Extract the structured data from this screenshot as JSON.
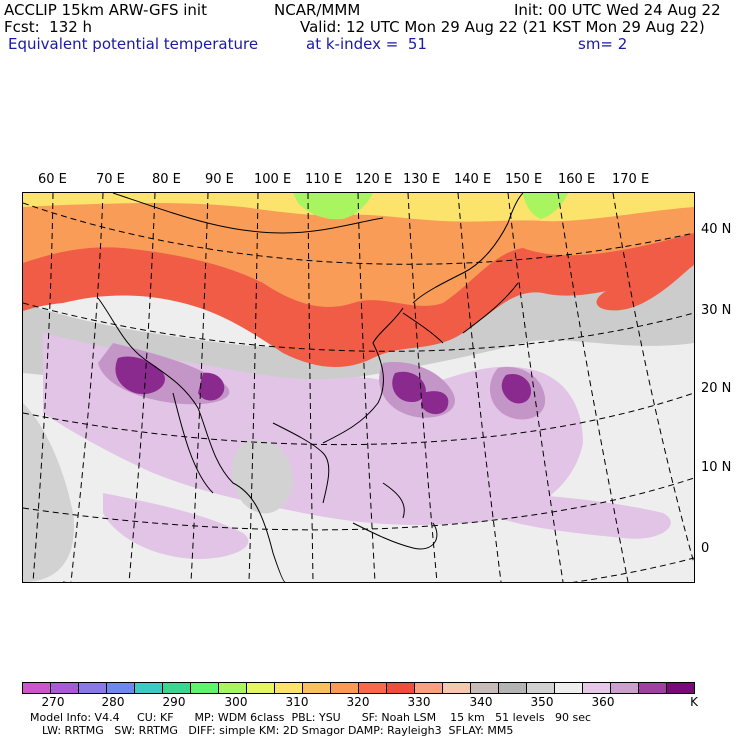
{
  "header": {
    "model": "ACCLIP 15km ARW-GFS init",
    "org": "NCAR/MMM",
    "init": "Init: 00 UTC Wed 24 Aug 22",
    "fcst": "Fcst:  132 h",
    "valid": "Valid: 12 UTC Mon 29 Aug 22 (21 KST Mon 29 Aug 22)",
    "field": "Equivalent potential temperature",
    "level": "at k-index =  51",
    "smooth": "sm= 2"
  },
  "map": {
    "lon_labels": [
      "60 E",
      "70 E",
      "80 E",
      "90 E",
      "100 E",
      "110 E",
      "120 E",
      "130 E",
      "140 E",
      "150 E",
      "160 E",
      "170 E"
    ],
    "lat_labels": [
      "40 N",
      "30 N",
      "20 N",
      "10 N",
      "0"
    ]
  },
  "colorbar": {
    "colors": [
      "#cc55cc",
      "#a95ad6",
      "#8a78e6",
      "#6f88f0",
      "#3ccac4",
      "#38d690",
      "#5ef56c",
      "#a8f560",
      "#e6f562",
      "#fbe36c",
      "#f9c060",
      "#fa9a54",
      "#f96848",
      "#ef4e3c",
      "#f8a080",
      "#f5c8b0",
      "#c8bcb8",
      "#b4b4b4",
      "#d2d2d2",
      "#eeeeee",
      "#e8c8e8",
      "#cca0cc",
      "#a040a0",
      "#7a0a7a"
    ],
    "tick_labels": [
      "270",
      "280",
      "290",
      "300",
      "310",
      "320",
      "330",
      "340",
      "350",
      "360"
    ],
    "unit": "K"
  },
  "footer": {
    "line1": "Model Info: V4.4     CU: KF      MP: WDM 6class  PBL: YSU      SF: Noah LSM    15 km   51 levels   90 sec",
    "line2": "LW: RRTMG   SW: RRTMG   DIFF: simple KM: 2D Smagor DAMP: Rayleigh3  SFLAY: MM5"
  }
}
